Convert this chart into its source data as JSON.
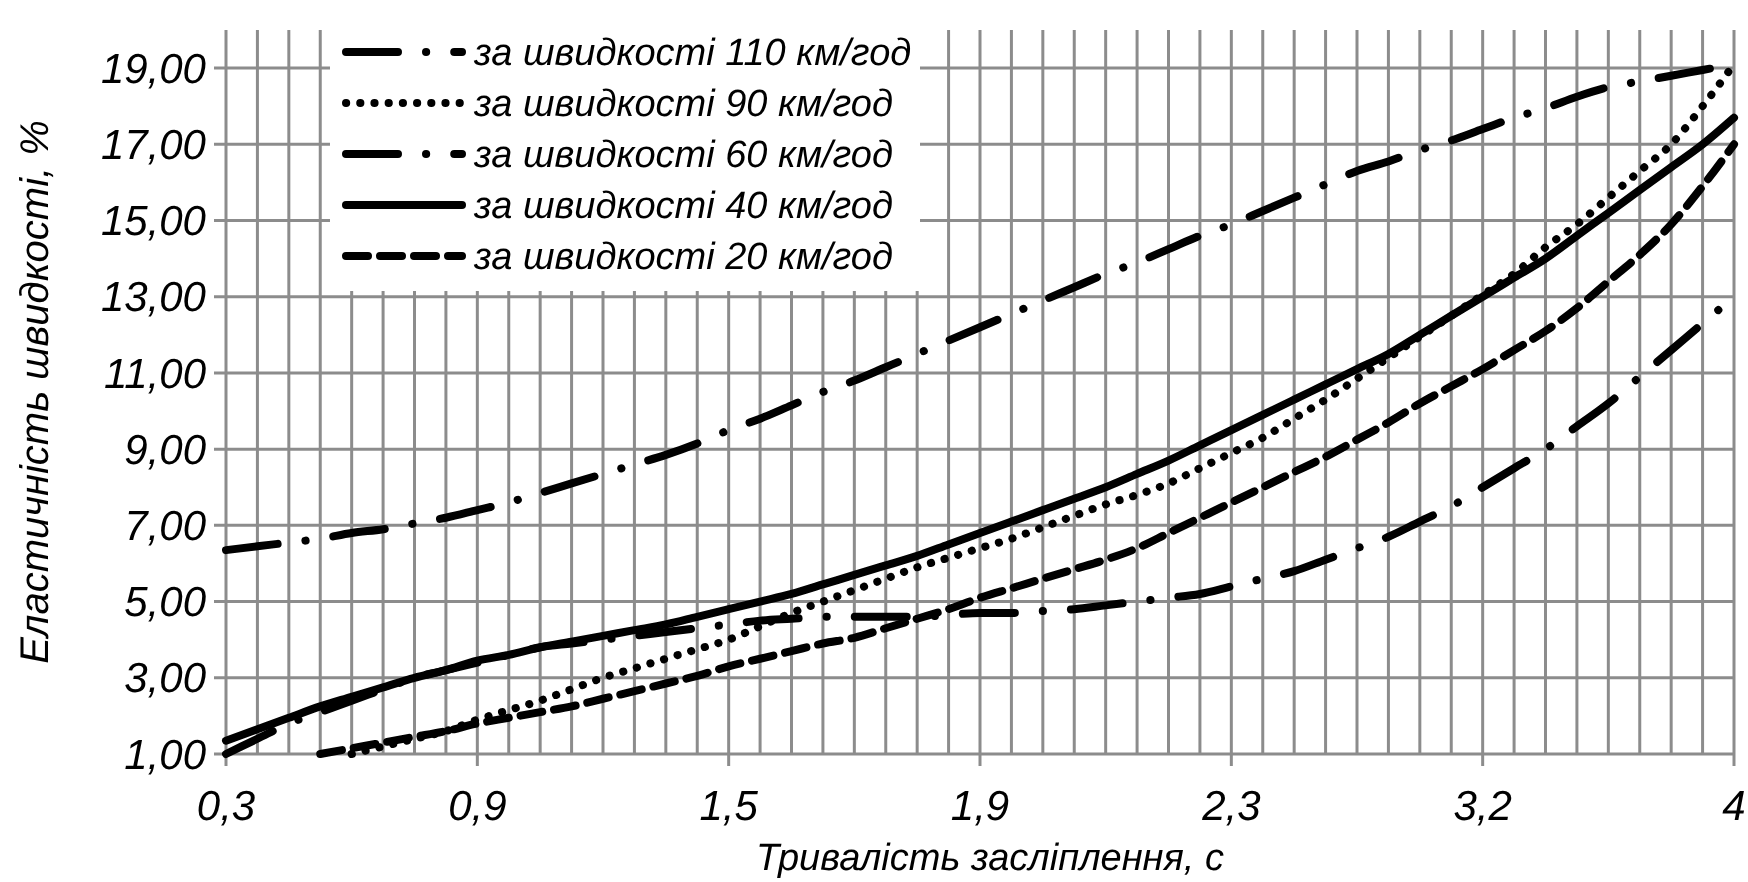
{
  "chart_data": {
    "type": "line",
    "xlabel": "Тривалість засліплення, с",
    "ylabel": "Еластичність швидкості, %",
    "categories": [
      "0,3",
      null,
      null,
      null,
      null,
      null,
      null,
      null,
      "0,9",
      null,
      null,
      null,
      null,
      null,
      null,
      null,
      "1,5",
      null,
      null,
      null,
      null,
      null,
      null,
      null,
      "1,9",
      null,
      null,
      null,
      null,
      null,
      null,
      null,
      "2,3",
      null,
      null,
      null,
      null,
      null,
      null,
      null,
      "3,2",
      null,
      null,
      null,
      null,
      null,
      null,
      null,
      "4"
    ],
    "ylim": [
      1,
      20
    ],
    "yticks": [
      {
        "value": 1,
        "label": "1,00"
      },
      {
        "value": 3,
        "label": "3,00"
      },
      {
        "value": 5,
        "label": "5,00"
      },
      {
        "value": 7,
        "label": "7,00"
      },
      {
        "value": 9,
        "label": "9,00"
      },
      {
        "value": 11,
        "label": "11,00"
      },
      {
        "value": 13,
        "label": "13,00"
      },
      {
        "value": 15,
        "label": "15,00"
      },
      {
        "value": 17,
        "label": "17,00"
      },
      {
        "value": 19,
        "label": "19,00"
      }
    ],
    "grid": true,
    "legend": "top left",
    "marker": "none",
    "series": [
      {
        "name": "за швидкості 110 км/год",
        "color": "#000000",
        "line_style": "dashdot",
        "values": [
          6.35,
          6.45,
          6.55,
          6.65,
          6.8,
          6.9,
          7.05,
          7.2,
          7.4,
          7.6,
          7.85,
          8.1,
          8.35,
          8.6,
          8.85,
          9.15,
          9.5,
          9.8,
          10.15,
          10.5,
          10.8,
          11.15,
          11.5,
          11.85,
          12.2,
          12.55,
          12.9,
          13.25,
          13.6,
          13.9,
          14.25,
          14.6,
          14.9,
          15.25,
          15.6,
          15.95,
          16.3,
          16.55,
          16.85,
          17.1,
          17.4,
          17.7,
          17.95,
          18.25,
          18.5,
          18.65,
          18.8,
          18.95,
          19.1
        ]
      },
      {
        "name": "за швидкості 90 км/год",
        "color": "#000000",
        "line_style": "dotted",
        "values": [
          null,
          null,
          null,
          null,
          1.0,
          1.2,
          1.4,
          1.6,
          1.9,
          2.15,
          2.4,
          2.7,
          3.0,
          3.25,
          3.5,
          3.75,
          4.0,
          4.35,
          4.7,
          5.0,
          5.3,
          5.6,
          5.9,
          6.15,
          6.4,
          6.65,
          6.95,
          7.25,
          7.55,
          7.8,
          8.1,
          8.5,
          8.9,
          9.3,
          9.8,
          10.3,
          10.85,
          11.4,
          11.95,
          12.5,
          13.05,
          13.6,
          14.3,
          14.9,
          15.6,
          16.3,
          17.0,
          18.0,
          19.1
        ]
      },
      {
        "name": "за швидкості 60 км/год",
        "color": "#000000",
        "line_style": "dashdot",
        "values": [
          1.0,
          1.4,
          1.8,
          2.1,
          2.4,
          2.7,
          3.0,
          3.2,
          3.4,
          3.6,
          3.8,
          3.9,
          4.0,
          4.1,
          4.2,
          4.3,
          4.4,
          4.5,
          4.55,
          4.6,
          4.6,
          4.6,
          4.6,
          4.65,
          4.7,
          4.7,
          4.75,
          4.8,
          4.9,
          5.0,
          5.1,
          5.2,
          5.4,
          5.6,
          5.8,
          6.1,
          6.4,
          6.7,
          7.1,
          7.5,
          8.0,
          8.5,
          9.0,
          9.6,
          10.2,
          10.9,
          11.6,
          12.3,
          13.0
        ]
      },
      {
        "name": "за швидкості 40 км/год",
        "color": "#000000",
        "line_style": "solid",
        "values": [
          1.35,
          1.65,
          1.95,
          2.25,
          2.5,
          2.75,
          3.0,
          3.2,
          3.45,
          3.6,
          3.8,
          3.95,
          4.1,
          4.25,
          4.4,
          4.6,
          4.8,
          5.0,
          5.2,
          5.45,
          5.7,
          5.95,
          6.2,
          6.5,
          6.8,
          7.1,
          7.4,
          7.7,
          8.0,
          8.35,
          8.7,
          9.1,
          9.5,
          9.9,
          10.3,
          10.7,
          11.1,
          11.5,
          12.0,
          12.5,
          13.0,
          13.5,
          14.0,
          14.6,
          15.2,
          15.8,
          16.4,
          17.0,
          17.7
        ]
      },
      {
        "name": "за швидкості 20 км/год",
        "color": "#000000",
        "line_style": "dashed",
        "values": [
          null,
          null,
          null,
          1.0,
          1.15,
          1.3,
          1.45,
          1.6,
          1.8,
          1.95,
          2.1,
          2.25,
          2.45,
          2.65,
          2.85,
          3.05,
          3.3,
          3.5,
          3.7,
          3.9,
          4.05,
          4.3,
          4.55,
          4.8,
          5.1,
          5.35,
          5.6,
          5.85,
          6.1,
          6.4,
          6.8,
          7.2,
          7.6,
          8.0,
          8.4,
          8.8,
          9.25,
          9.7,
          10.2,
          10.65,
          11.1,
          11.6,
          12.1,
          12.7,
          13.4,
          14.1,
          14.9,
          15.9,
          17.0
        ]
      }
    ]
  }
}
